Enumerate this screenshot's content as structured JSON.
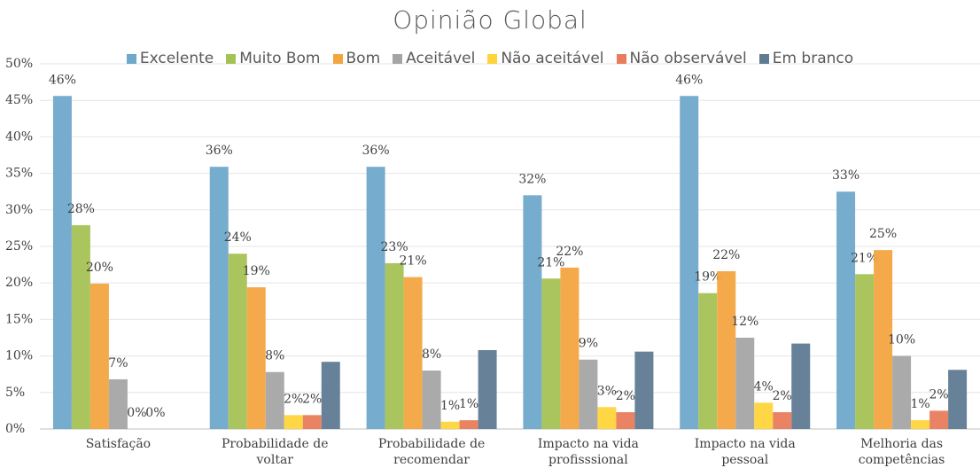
{
  "chart_data": {
    "type": "bar",
    "title": "Opinião Global",
    "categories": [
      "Satisfação",
      "Probabilidade de voltar",
      "Probabilidade de recomendar",
      "Impacto na vida profisssional",
      "Impacto na vida pessoal",
      "Melhoria das competências"
    ],
    "series": [
      {
        "name": "Excelente",
        "color": "#6fa8cb",
        "values": [
          45.6,
          35.9,
          35.9,
          32.0,
          45.6,
          32.5
        ],
        "value_labels": [
          "46%",
          "36%",
          "36%",
          "32%",
          "46%",
          "33%"
        ]
      },
      {
        "name": "Muito Bom",
        "color": "#a5c254",
        "values": [
          27.9,
          24.0,
          22.7,
          20.6,
          18.6,
          21.2
        ],
        "value_labels": [
          "28%",
          "24%",
          "23%",
          "21%",
          "19%",
          "21%"
        ]
      },
      {
        "name": "Bom",
        "color": "#f3a540",
        "values": [
          19.9,
          19.4,
          20.8,
          22.1,
          21.6,
          24.5
        ],
        "value_labels": [
          "20%",
          "19%",
          "21%",
          "22%",
          "22%",
          "25%"
        ]
      },
      {
        "name": "Aceitável",
        "color": "#a5a5a5",
        "values": [
          6.8,
          7.8,
          8.0,
          9.5,
          12.5,
          10.0
        ],
        "value_labels": [
          "7%",
          "8%",
          "8%",
          "9%",
          "12%",
          "10%"
        ]
      },
      {
        "name": "Não aceitável",
        "color": "#ffd43a",
        "values": [
          0,
          1.9,
          1.0,
          3.0,
          3.6,
          1.2
        ],
        "value_labels": [
          "0%",
          "2%",
          "1%",
          "3%",
          "4%",
          "1%"
        ]
      },
      {
        "name": "Não observável",
        "color": "#e97c5b",
        "values": [
          0,
          1.9,
          1.2,
          2.3,
          2.3,
          2.5
        ],
        "value_labels": [
          "0%",
          "2%",
          "1%",
          "2%",
          "2%",
          "2%"
        ]
      },
      {
        "name": "Em branco",
        "color": "#5f7b92",
        "values": [
          0,
          9.2,
          10.8,
          10.6,
          11.7,
          8.1
        ]
      }
    ],
    "ylim": [
      0,
      50
    ],
    "yticks": [
      {
        "value": 0,
        "label": "0%"
      },
      {
        "value": 5,
        "label": "5%"
      },
      {
        "value": 10,
        "label": "10%"
      },
      {
        "value": 15,
        "label": "15%"
      },
      {
        "value": 20,
        "label": "20%"
      },
      {
        "value": 25,
        "label": "25%"
      },
      {
        "value": 30,
        "label": "30%"
      },
      {
        "value": 35,
        "label": "35%"
      },
      {
        "value": 40,
        "label": "40%"
      },
      {
        "value": 45,
        "label": "45%"
      },
      {
        "value": 50,
        "label": "50%"
      }
    ],
    "grid": true,
    "legend": "top"
  }
}
